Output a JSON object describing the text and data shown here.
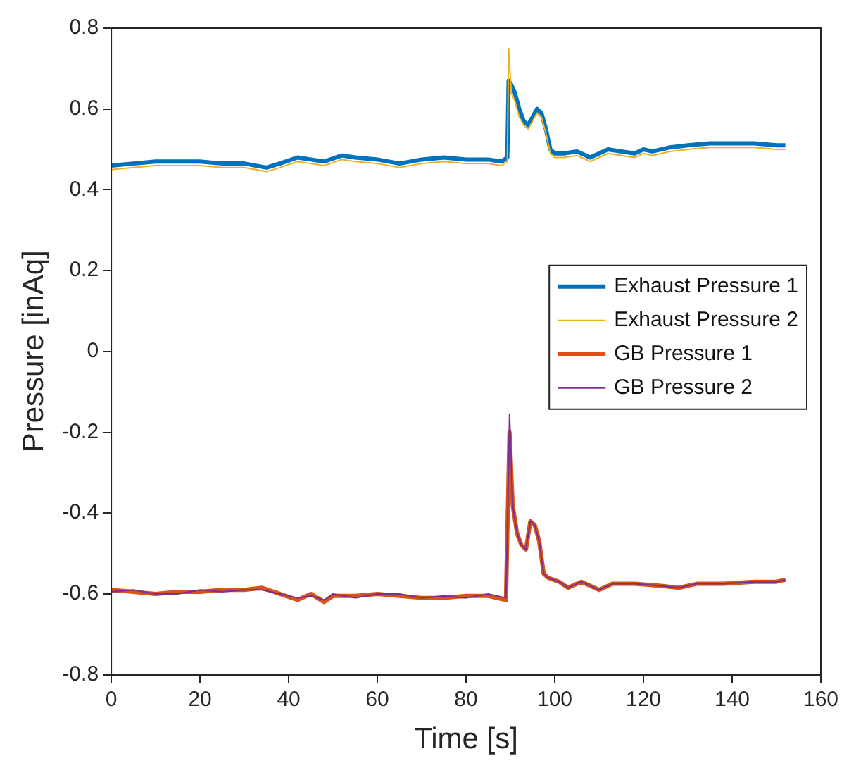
{
  "chart_data": {
    "type": "line",
    "xlabel": "Time [s]",
    "ylabel": "Pressure [inAq]",
    "xlim": [
      0,
      160
    ],
    "xticks": [
      0,
      20,
      40,
      60,
      80,
      100,
      120,
      140,
      160
    ],
    "ylim": [
      -0.8,
      0.8
    ],
    "yticks": [
      -0.8,
      -0.6,
      -0.4,
      -0.2,
      0,
      0.2,
      0.4,
      0.6,
      0.8
    ],
    "grid": false,
    "legend": "right",
    "marker": "none",
    "line_style": "solid",
    "series": [
      {
        "name": "Exhaust Pressure 1",
        "color": "#0072bd",
        "x": [
          0,
          5,
          10,
          15,
          20,
          25,
          30,
          35,
          38,
          42,
          45,
          48,
          52,
          55,
          60,
          65,
          70,
          75,
          80,
          85,
          88,
          89.3,
          89.6,
          90.2,
          91,
          92,
          93,
          94,
          95,
          96,
          97,
          98,
          99,
          100,
          102,
          105,
          108,
          112,
          115,
          118,
          120,
          122,
          126,
          130,
          135,
          140,
          145,
          150,
          152
        ],
        "values": [
          0.46,
          0.465,
          0.47,
          0.47,
          0.47,
          0.465,
          0.465,
          0.455,
          0.465,
          0.48,
          0.475,
          0.47,
          0.485,
          0.48,
          0.475,
          0.465,
          0.475,
          0.48,
          0.475,
          0.475,
          0.47,
          0.48,
          0.67,
          0.66,
          0.64,
          0.6,
          0.57,
          0.56,
          0.58,
          0.6,
          0.59,
          0.55,
          0.5,
          0.49,
          0.49,
          0.495,
          0.48,
          0.5,
          0.495,
          0.49,
          0.5,
          0.495,
          0.505,
          0.51,
          0.515,
          0.515,
          0.515,
          0.51,
          0.51
        ]
      },
      {
        "name": "Exhaust Pressure 2",
        "color": "#edb120",
        "x": [
          0,
          5,
          10,
          15,
          20,
          25,
          30,
          35,
          38,
          42,
          45,
          48,
          52,
          55,
          60,
          65,
          70,
          75,
          80,
          85,
          88,
          89.3,
          89.6,
          90.2,
          91,
          92,
          93,
          94,
          95,
          96,
          97,
          98,
          99,
          100,
          102,
          105,
          108,
          112,
          115,
          118,
          120,
          122,
          126,
          130,
          135,
          140,
          145,
          150,
          152
        ],
        "values": [
          0.45,
          0.455,
          0.46,
          0.46,
          0.46,
          0.455,
          0.455,
          0.445,
          0.455,
          0.47,
          0.465,
          0.46,
          0.475,
          0.47,
          0.465,
          0.455,
          0.465,
          0.47,
          0.465,
          0.465,
          0.46,
          0.47,
          0.75,
          0.64,
          0.62,
          0.58,
          0.56,
          0.55,
          0.57,
          0.59,
          0.58,
          0.54,
          0.49,
          0.48,
          0.48,
          0.485,
          0.47,
          0.49,
          0.485,
          0.48,
          0.49,
          0.485,
          0.495,
          0.5,
          0.505,
          0.505,
          0.505,
          0.5,
          0.5
        ]
      },
      {
        "name": "GB Pressure 1",
        "color": "#d95319",
        "x": [
          0,
          5,
          10,
          15,
          20,
          25,
          30,
          34,
          38,
          42,
          45,
          48,
          50,
          55,
          60,
          65,
          70,
          75,
          80,
          85,
          89,
          89.4,
          89.8,
          90.5,
          91.5,
          92.5,
          93.5,
          94.5,
          95.5,
          96.5,
          97.5,
          98.5,
          101,
          103,
          106,
          110,
          113,
          118,
          124,
          128,
          132,
          138,
          145,
          150,
          152
        ],
        "values": [
          -0.59,
          -0.595,
          -0.6,
          -0.595,
          -0.595,
          -0.59,
          -0.59,
          -0.585,
          -0.6,
          -0.615,
          -0.6,
          -0.62,
          -0.605,
          -0.605,
          -0.6,
          -0.605,
          -0.61,
          -0.61,
          -0.605,
          -0.605,
          -0.615,
          -0.4,
          -0.2,
          -0.38,
          -0.45,
          -0.48,
          -0.49,
          -0.42,
          -0.43,
          -0.47,
          -0.55,
          -0.56,
          -0.57,
          -0.585,
          -0.57,
          -0.59,
          -0.575,
          -0.575,
          -0.58,
          -0.585,
          -0.575,
          -0.575,
          -0.57,
          -0.57,
          -0.565
        ]
      },
      {
        "name": "GB Pressure 2",
        "color": "#7e2f8e",
        "x": [
          0,
          5,
          10,
          15,
          20,
          25,
          30,
          34,
          38,
          42,
          45,
          48,
          50,
          55,
          60,
          65,
          70,
          75,
          80,
          85,
          89,
          89.4,
          89.8,
          90.5,
          91.5,
          92.5,
          93.5,
          94.5,
          95.5,
          96.5,
          97.5,
          98.5,
          101,
          103,
          106,
          110,
          113,
          118,
          124,
          128,
          132,
          138,
          145,
          150,
          152
        ],
        "values": [
          -0.595,
          -0.59,
          -0.6,
          -0.6,
          -0.59,
          -0.595,
          -0.59,
          -0.59,
          -0.6,
          -0.61,
          -0.605,
          -0.615,
          -0.6,
          -0.61,
          -0.6,
          -0.6,
          -0.61,
          -0.605,
          -0.61,
          -0.6,
          -0.61,
          -0.4,
          -0.155,
          -0.38,
          -0.45,
          -0.48,
          -0.49,
          -0.42,
          -0.43,
          -0.47,
          -0.55,
          -0.56,
          -0.57,
          -0.585,
          -0.57,
          -0.59,
          -0.575,
          -0.575,
          -0.58,
          -0.585,
          -0.575,
          -0.575,
          -0.57,
          -0.57,
          -0.565
        ]
      }
    ]
  }
}
